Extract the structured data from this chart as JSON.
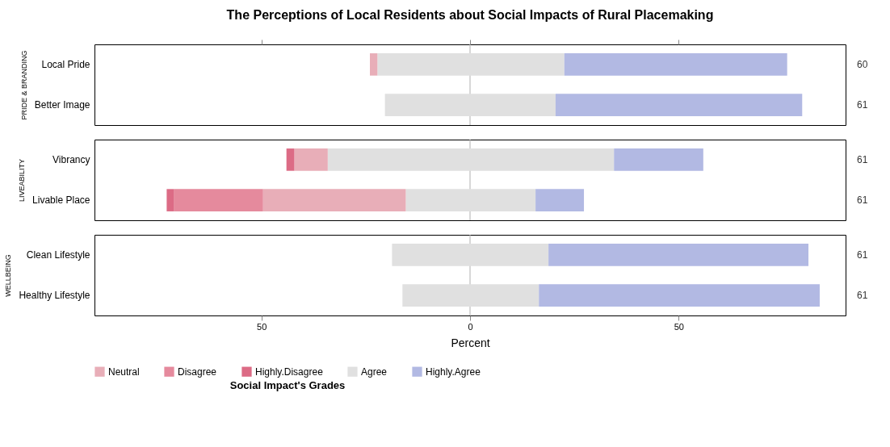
{
  "chart_data": [
    {
      "type": "bar",
      "title": "The Perceptions of Local Residents about Social Impacts of Rural Placemaking",
      "ylabel": "PRIDE & BRANDING",
      "orientation": "horizontal",
      "stacked": true,
      "categories": [
        "Local Pride",
        "Better Image"
      ],
      "y2_categories": [
        "60",
        "61"
      ],
      "xlim": [
        -90,
        90
      ],
      "xticks": [
        {
          "value": -50,
          "label": null
        },
        {
          "value": 0,
          "label": null
        },
        {
          "value": 50,
          "label": null
        }
      ],
      "tick_labels": "y",
      "grid": false,
      "ref_lines": [
        {
          "axis": "x",
          "value": 0,
          "color": "#b0b0b0"
        }
      ],
      "series": [
        {
          "color": "#e0e0e0",
          "values": [
            -22.2,
            -20.4
          ]
        },
        {
          "color": "#e8aeb8",
          "values": [
            -1.8,
            null
          ]
        },
        {
          "color": "#e0e0e0",
          "values": [
            22.6,
            20.5
          ]
        },
        {
          "color": "#b2b9e3",
          "values": [
            53.4,
            59.1
          ]
        }
      ]
    },
    {
      "type": "bar",
      "ylabel": "LIVEABILITY",
      "orientation": "horizontal",
      "stacked": true,
      "categories": [
        "Vibrancy",
        "Livable Place"
      ],
      "y2_categories": [
        "61",
        "61"
      ],
      "xlim": [
        -90,
        90
      ],
      "tick_labels": "y",
      "grid": false,
      "ref_lines": [
        {
          "axis": "x",
          "value": 0,
          "color": "#b0b0b0"
        }
      ],
      "series": [
        {
          "color": "#e0e0e0",
          "values": [
            -34.1,
            -15.4
          ]
        },
        {
          "color": "#e8aeb8",
          "values": [
            -8.0,
            -34.2
          ]
        },
        {
          "color": "#e58a9d",
          "values": [
            null,
            -21.3
          ]
        },
        {
          "color": "#dc6b85",
          "values": [
            -1.9,
            -1.8
          ]
        },
        {
          "color": "#e0e0e0",
          "values": [
            34.5,
            15.7
          ]
        },
        {
          "color": "#b2b9e3",
          "values": [
            21.4,
            11.6
          ]
        }
      ]
    },
    {
      "type": "bar",
      "ylabel": "WELLBEING",
      "xlabel": "Percent",
      "legend_title": "Social Impact's Grades",
      "orientation": "horizontal",
      "stacked": true,
      "categories": [
        "Clean Lifestyle",
        "Healthy Lifestyle"
      ],
      "y2_categories": [
        "61",
        "61"
      ],
      "xlim": [
        -90,
        90
      ],
      "xticks": [
        {
          "value": -50,
          "label": "50"
        },
        {
          "value": 0,
          "label": "0"
        },
        {
          "value": 50,
          "label": "50"
        }
      ],
      "legend": "bottom",
      "grid": false,
      "ref_lines": [
        {
          "axis": "x",
          "value": 0,
          "color": "#b0b0b0"
        }
      ],
      "series": [
        {
          "color": "#e0e0e0",
          "values": [
            -18.7,
            -16.2
          ]
        },
        {
          "name": "Neutral",
          "color": "#e8aeb8",
          "values": [
            null,
            null
          ]
        },
        {
          "name": "Disagree",
          "color": "#e58a9d",
          "values": [
            null,
            null
          ]
        },
        {
          "name": "Highly.Disagree",
          "color": "#dc6b85",
          "values": [
            null,
            null
          ]
        },
        {
          "name": "Agree",
          "color": "#e0e0e0",
          "values": [
            18.8,
            16.5
          ]
        },
        {
          "name": "Highly.Agree",
          "color": "#b2b9e3",
          "values": [
            62.3,
            67.3
          ]
        }
      ]
    }
  ]
}
